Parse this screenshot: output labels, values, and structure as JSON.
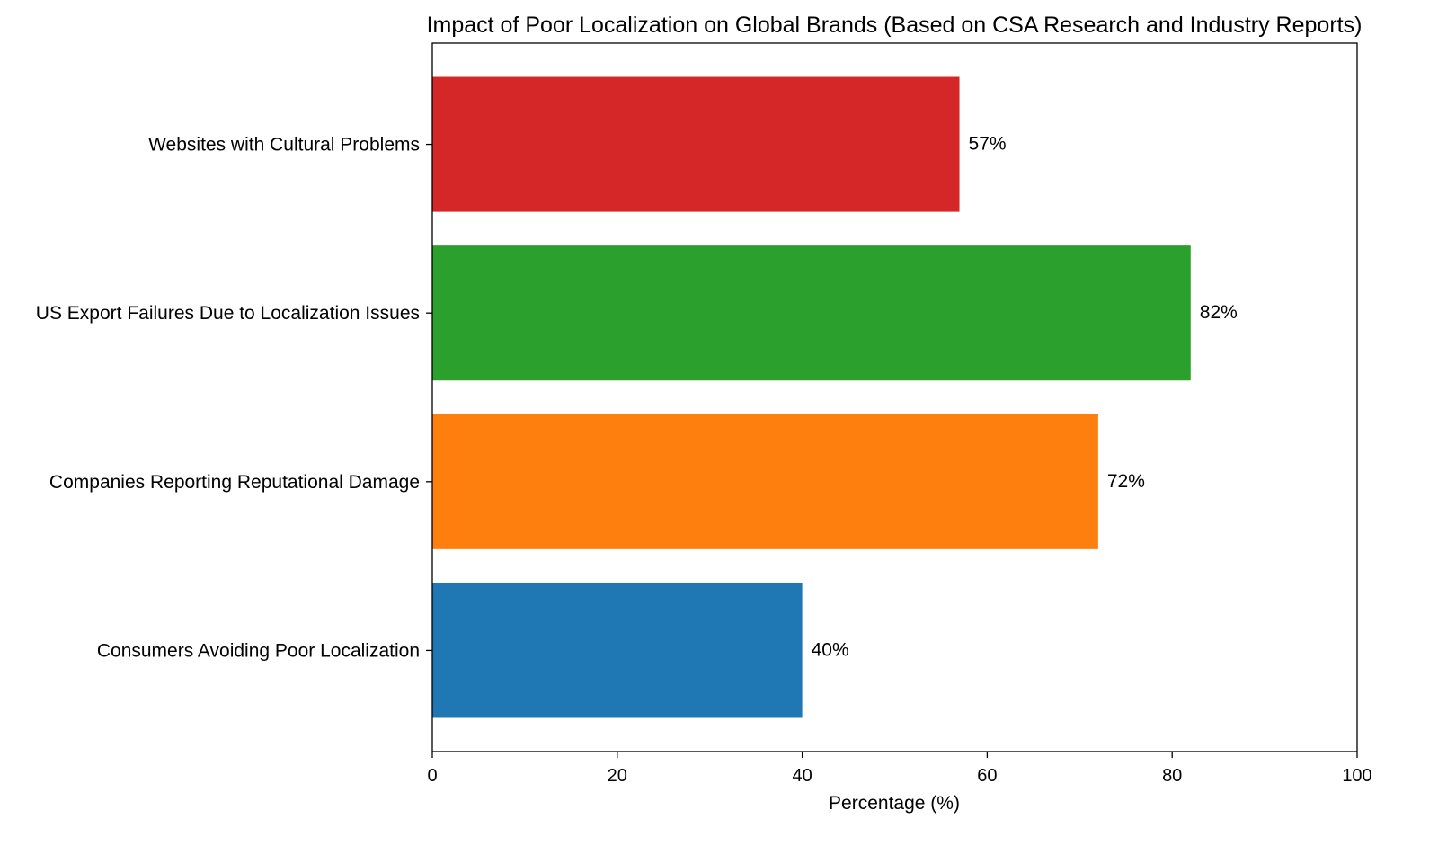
{
  "chart_data": {
    "type": "bar",
    "orientation": "horizontal",
    "title": "Impact of Poor Localization on Global Brands (Based on CSA Research and Industry Reports)",
    "xlabel": "Percentage (%)",
    "ylabel": "",
    "xlim": [
      0,
      100
    ],
    "xticks": [
      0,
      20,
      40,
      60,
      80,
      100
    ],
    "grid": false,
    "categories": [
      "Consumers Avoiding Poor Localization",
      "Companies Reporting Reputational Damage",
      "US Export Failures Due to Localization Issues",
      "Websites with Cultural Problems"
    ],
    "values": [
      40,
      72,
      82,
      57
    ],
    "data_labels": [
      "40%",
      "72%",
      "82%",
      "57%"
    ],
    "colors": [
      "#1f77b4",
      "#ff7f0e",
      "#2ca02c",
      "#d62728"
    ]
  }
}
